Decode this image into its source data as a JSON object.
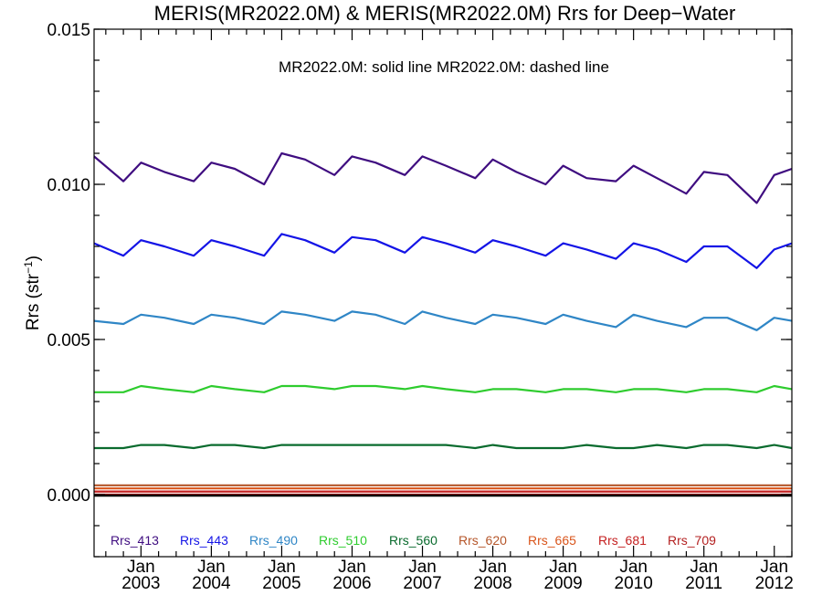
{
  "chart_data": {
    "type": "line",
    "title": "MERIS(MR2022.0M) & MERIS(MR2022.0M)  Rrs for Deep−Water",
    "ylabel": "Rrs (str",
    "ylabel_sup": "−1",
    "ylabel_close": ")",
    "annotation": "MR2022.0M: solid line   MR2022.0M: dashed line",
    "ylim": [
      -0.002,
      0.015
    ],
    "yticks": [
      0.0,
      0.005,
      0.01,
      0.015
    ],
    "ytick_labels": [
      "0.000",
      "0.005",
      "0.010",
      "0.015"
    ],
    "xlim": [
      "2002-05",
      "2012-04"
    ],
    "xticks": [
      {
        "month": "Jan",
        "year": "2003"
      },
      {
        "month": "Jan",
        "year": "2004"
      },
      {
        "month": "Jan",
        "year": "2005"
      },
      {
        "month": "Jan",
        "year": "2006"
      },
      {
        "month": "Jan",
        "year": "2007"
      },
      {
        "month": "Jan",
        "year": "2008"
      },
      {
        "month": "Jan",
        "year": "2009"
      },
      {
        "month": "Jan",
        "year": "2010"
      },
      {
        "month": "Jan",
        "year": "2011"
      },
      {
        "month": "Jan",
        "year": "2012"
      }
    ],
    "x": [
      "2002-05",
      "2002-10",
      "2003-01",
      "2003-05",
      "2003-10",
      "2004-01",
      "2004-05",
      "2004-10",
      "2005-01",
      "2005-05",
      "2005-10",
      "2006-01",
      "2006-05",
      "2006-10",
      "2007-01",
      "2007-05",
      "2007-10",
      "2008-01",
      "2008-05",
      "2008-10",
      "2009-01",
      "2009-05",
      "2009-10",
      "2010-01",
      "2010-05",
      "2010-10",
      "2011-01",
      "2011-05",
      "2011-10",
      "2012-01",
      "2012-04"
    ],
    "series": [
      {
        "name": "Rrs_413",
        "color": "#3f0d80",
        "values": [
          0.0109,
          0.0101,
          0.0107,
          0.0104,
          0.0101,
          0.0107,
          0.0105,
          0.01,
          0.011,
          0.0108,
          0.0103,
          0.0109,
          0.0107,
          0.0103,
          0.0109,
          0.0106,
          0.0102,
          0.0108,
          0.0104,
          0.01,
          0.0106,
          0.0102,
          0.0101,
          0.0106,
          0.0102,
          0.0097,
          0.0104,
          0.0103,
          0.0094,
          0.0103,
          0.0105
        ]
      },
      {
        "name": "Rrs_443",
        "color": "#1414e6",
        "values": [
          0.0081,
          0.0077,
          0.0082,
          0.008,
          0.0077,
          0.0082,
          0.008,
          0.0077,
          0.0084,
          0.0082,
          0.0078,
          0.0083,
          0.0082,
          0.0078,
          0.0083,
          0.0081,
          0.0078,
          0.0082,
          0.008,
          0.0077,
          0.0081,
          0.0079,
          0.0076,
          0.0081,
          0.0079,
          0.0075,
          0.008,
          0.008,
          0.0073,
          0.0079,
          0.0081
        ]
      },
      {
        "name": "Rrs_490",
        "color": "#2f86c6",
        "values": [
          0.0056,
          0.0055,
          0.0058,
          0.0057,
          0.0055,
          0.0058,
          0.0057,
          0.0055,
          0.0059,
          0.0058,
          0.0056,
          0.0059,
          0.0058,
          0.0055,
          0.0059,
          0.0057,
          0.0055,
          0.0058,
          0.0057,
          0.0055,
          0.0058,
          0.0056,
          0.0054,
          0.0058,
          0.0056,
          0.0054,
          0.0057,
          0.0057,
          0.0053,
          0.0057,
          0.0056
        ]
      },
      {
        "name": "Rrs_510",
        "color": "#2ecc2e",
        "values": [
          0.0033,
          0.0033,
          0.0035,
          0.0034,
          0.0033,
          0.0035,
          0.0034,
          0.0033,
          0.0035,
          0.0035,
          0.0034,
          0.0035,
          0.0035,
          0.0034,
          0.0035,
          0.0034,
          0.0033,
          0.0034,
          0.0034,
          0.0033,
          0.0034,
          0.0034,
          0.0033,
          0.0034,
          0.0034,
          0.0033,
          0.0034,
          0.0034,
          0.0033,
          0.0035,
          0.0034
        ]
      },
      {
        "name": "Rrs_560",
        "color": "#0a6b2e",
        "values": [
          0.0015,
          0.0015,
          0.0016,
          0.0016,
          0.0015,
          0.0016,
          0.0016,
          0.0015,
          0.0016,
          0.0016,
          0.0016,
          0.0016,
          0.0016,
          0.0016,
          0.0016,
          0.0016,
          0.0015,
          0.0016,
          0.0015,
          0.0015,
          0.0015,
          0.0016,
          0.0015,
          0.0015,
          0.0016,
          0.0015,
          0.0016,
          0.0016,
          0.0015,
          0.0016,
          0.0015
        ]
      },
      {
        "name": "Rrs_620",
        "color": "#b5562a",
        "values": [
          0.0003,
          0.0003,
          0.0003,
          0.0003,
          0.0003,
          0.0003,
          0.0003,
          0.0003,
          0.0003,
          0.0003,
          0.0003,
          0.0003,
          0.0003,
          0.0003,
          0.0003,
          0.0003,
          0.0003,
          0.0003,
          0.0003,
          0.0003,
          0.0003,
          0.0003,
          0.0003,
          0.0003,
          0.0003,
          0.0003,
          0.0003,
          0.0003,
          0.0003,
          0.0003,
          0.0003
        ]
      },
      {
        "name": "Rrs_665",
        "color": "#d9541a",
        "values": [
          0.0002,
          0.0002,
          0.0002,
          0.0002,
          0.0002,
          0.0002,
          0.0002,
          0.0002,
          0.0002,
          0.0002,
          0.0002,
          0.0002,
          0.0002,
          0.0002,
          0.0002,
          0.0002,
          0.0002,
          0.0002,
          0.0002,
          0.0002,
          0.0002,
          0.0002,
          0.0002,
          0.0002,
          0.0002,
          0.0002,
          0.0002,
          0.0002,
          0.0002,
          0.0002,
          0.0002
        ]
      },
      {
        "name": "Rrs_681",
        "color": "#c41f1f",
        "values": [
          0.0001,
          0.0001,
          0.0001,
          0.0001,
          0.0001,
          0.0001,
          0.0001,
          0.0001,
          0.0001,
          0.0001,
          0.0001,
          0.0001,
          0.0001,
          0.0001,
          0.0001,
          0.0001,
          0.0001,
          0.0001,
          0.0001,
          0.0001,
          0.0001,
          0.0001,
          0.0001,
          0.0001,
          0.0001,
          0.0001,
          0.0001,
          0.0001,
          0.0001,
          0.0001,
          0.0001
        ]
      },
      {
        "name": "Rrs_709",
        "color": "#b32020",
        "values": [
          0.0,
          0.0,
          0.0,
          0.0,
          0.0,
          0.0,
          0.0,
          0.0,
          0.0,
          0.0,
          0.0,
          0.0,
          0.0,
          0.0,
          0.0,
          0.0,
          0.0,
          0.0,
          0.0,
          0.0,
          0.0,
          0.0,
          0.0,
          0.0,
          0.0,
          0.0,
          0.0,
          0.0,
          0.0,
          0.0,
          0.0
        ]
      }
    ],
    "grid": false
  }
}
